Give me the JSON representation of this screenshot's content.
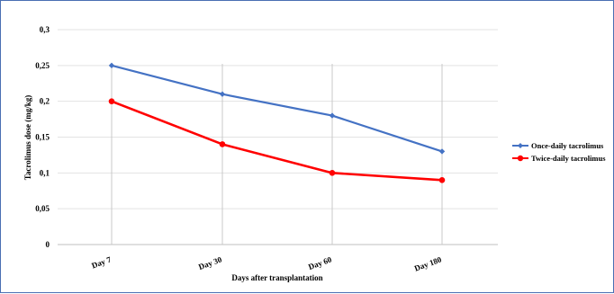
{
  "chart_data": {
    "type": "line",
    "categories": [
      "Day 7",
      "Day 30",
      "Day 60",
      "Day 180"
    ],
    "series": [
      {
        "name": "Once-daily tacrolimus",
        "values": [
          0.25,
          0.21,
          0.18,
          0.13
        ],
        "color": "#4472c4",
        "marker": "diamond"
      },
      {
        "name": "Twice-daily tacrolimus",
        "values": [
          0.2,
          0.14,
          0.1,
          0.09
        ],
        "color": "#ff0000",
        "marker": "circle"
      }
    ],
    "xlabel": "Days after transplantation",
    "ylabel": "Tacrolimus dose (mg/kg)",
    "ylim": [
      0,
      0.3
    ],
    "yticks": [
      "0",
      "0,05",
      "0,1",
      "0,15",
      "0,2",
      "0,25",
      "0,3"
    ],
    "grid": true,
    "legend_position": "right"
  }
}
